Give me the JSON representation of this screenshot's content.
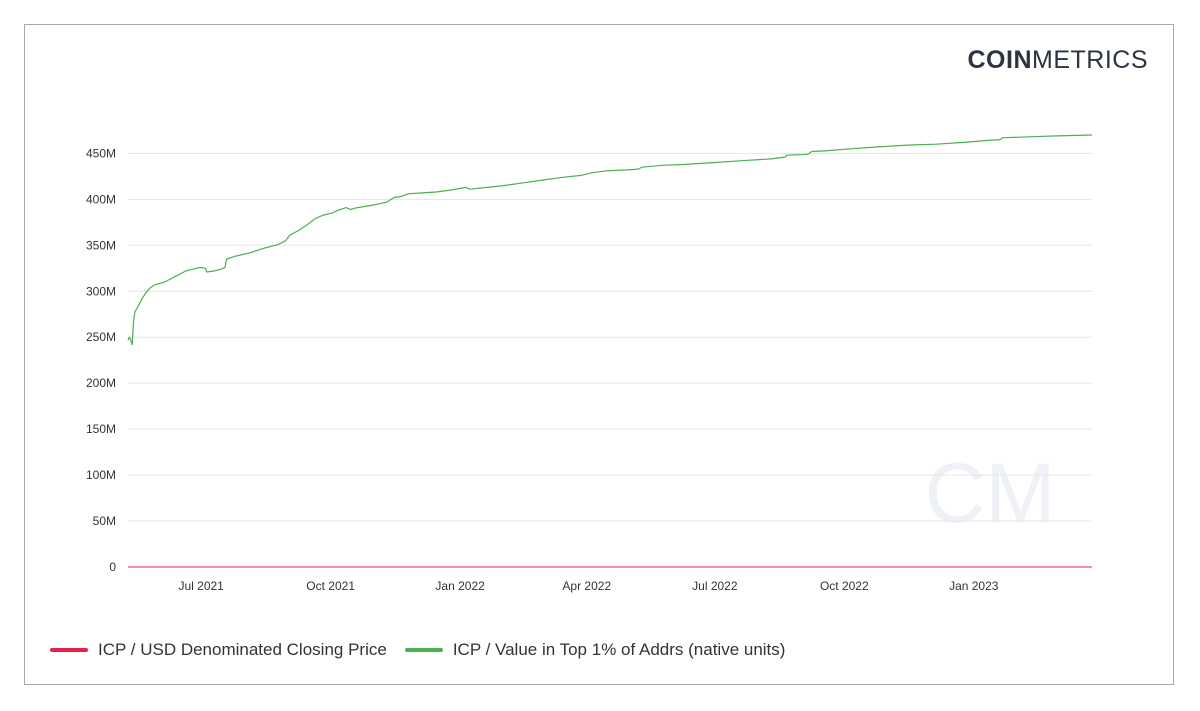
{
  "brand": {
    "logo_bold": "COIN",
    "logo_light": "METRICS",
    "watermark": "CM"
  },
  "colors": {
    "price": "#e8214c",
    "top1pct": "#4caf50",
    "grid": "#e6e6e6",
    "axis_text": "#333333"
  },
  "chart_data": {
    "type": "line",
    "title": "",
    "xlabel": "",
    "ylabel": "",
    "ylim": [
      0,
      470000000
    ],
    "yticks": [
      {
        "value": 0,
        "label": "0"
      },
      {
        "value": 50000000,
        "label": "50M"
      },
      {
        "value": 100000000,
        "label": "100M"
      },
      {
        "value": 150000000,
        "label": "150M"
      },
      {
        "value": 200000000,
        "label": "200M"
      },
      {
        "value": 250000000,
        "label": "250M"
      },
      {
        "value": 300000000,
        "label": "300M"
      },
      {
        "value": 350000000,
        "label": "350M"
      },
      {
        "value": 400000000,
        "label": "400M"
      },
      {
        "value": 450000000,
        "label": "450M"
      }
    ],
    "xlim": [
      "2021-05-10",
      "2023-03-26"
    ],
    "xticks": [
      {
        "date": "2021-07-01",
        "label": "Jul 2021"
      },
      {
        "date": "2021-10-01",
        "label": "Oct 2021"
      },
      {
        "date": "2022-01-01",
        "label": "Jan 2022"
      },
      {
        "date": "2022-04-01",
        "label": "Apr 2022"
      },
      {
        "date": "2022-07-01",
        "label": "Jul 2022"
      },
      {
        "date": "2022-10-01",
        "label": "Oct 2022"
      },
      {
        "date": "2023-01-01",
        "label": "Jan 2023"
      }
    ],
    "grid": true,
    "legend_position": "bottom-left",
    "series": [
      {
        "name": "ICP / USD Denominated Closing Price",
        "color": "#e8214c",
        "points": [
          [
            "2021-05-10",
            40
          ],
          [
            "2022-06-01",
            6
          ],
          [
            "2023-03-26",
            5
          ]
        ]
      },
      {
        "name": "ICP / Value in Top 1% of Addrs (native units)",
        "color": "#4caf50",
        "points": [
          [
            "2021-05-10",
            247000000
          ],
          [
            "2021-05-11",
            250000000
          ],
          [
            "2021-05-12",
            247000000
          ],
          [
            "2021-05-13",
            242000000
          ],
          [
            "2021-05-14",
            268000000
          ],
          [
            "2021-05-15",
            278000000
          ],
          [
            "2021-05-17",
            283000000
          ],
          [
            "2021-05-20",
            292000000
          ],
          [
            "2021-05-23",
            299000000
          ],
          [
            "2021-05-26",
            304000000
          ],
          [
            "2021-05-29",
            307000000
          ],
          [
            "2021-06-05",
            310000000
          ],
          [
            "2021-06-10",
            314000000
          ],
          [
            "2021-06-15",
            318000000
          ],
          [
            "2021-06-20",
            322000000
          ],
          [
            "2021-06-25",
            324000000
          ],
          [
            "2021-06-30",
            326000000
          ],
          [
            "2021-07-04",
            325000000
          ],
          [
            "2021-07-05",
            321000000
          ],
          [
            "2021-07-10",
            322000000
          ],
          [
            "2021-07-15",
            324000000
          ],
          [
            "2021-07-18",
            326000000
          ],
          [
            "2021-07-19",
            335000000
          ],
          [
            "2021-07-25",
            338000000
          ],
          [
            "2021-08-05",
            342000000
          ],
          [
            "2021-08-15",
            347000000
          ],
          [
            "2021-08-25",
            351000000
          ],
          [
            "2021-08-30",
            355000000
          ],
          [
            "2021-09-02",
            361000000
          ],
          [
            "2021-09-08",
            366000000
          ],
          [
            "2021-09-14",
            372000000
          ],
          [
            "2021-09-20",
            379000000
          ],
          [
            "2021-09-26",
            383000000
          ],
          [
            "2021-10-02",
            385000000
          ],
          [
            "2021-10-06",
            388000000
          ],
          [
            "2021-10-12",
            391000000
          ],
          [
            "2021-10-15",
            389000000
          ],
          [
            "2021-10-20",
            391000000
          ],
          [
            "2021-11-01",
            394000000
          ],
          [
            "2021-11-10",
            397000000
          ],
          [
            "2021-11-15",
            402000000
          ],
          [
            "2021-11-20",
            403000000
          ],
          [
            "2021-11-25",
            406000000
          ],
          [
            "2021-12-05",
            407000000
          ],
          [
            "2021-12-15",
            408000000
          ],
          [
            "2021-12-25",
            410000000
          ],
          [
            "2022-01-05",
            413000000
          ],
          [
            "2022-01-08",
            411000000
          ],
          [
            "2022-01-20",
            413000000
          ],
          [
            "2022-02-01",
            415000000
          ],
          [
            "2022-02-15",
            418000000
          ],
          [
            "2022-03-01",
            421000000
          ],
          [
            "2022-03-15",
            424000000
          ],
          [
            "2022-03-28",
            426000000
          ],
          [
            "2022-04-05",
            429000000
          ],
          [
            "2022-04-15",
            431000000
          ],
          [
            "2022-04-30",
            432000000
          ],
          [
            "2022-05-08",
            433000000
          ],
          [
            "2022-05-10",
            435000000
          ],
          [
            "2022-05-25",
            437000000
          ],
          [
            "2022-06-10",
            438000000
          ],
          [
            "2022-06-30",
            440000000
          ],
          [
            "2022-07-20",
            442000000
          ],
          [
            "2022-08-10",
            444000000
          ],
          [
            "2022-08-20",
            446000000
          ],
          [
            "2022-08-21",
            448000000
          ],
          [
            "2022-09-05",
            449000000
          ],
          [
            "2022-09-08",
            452000000
          ],
          [
            "2022-09-20",
            453000000
          ],
          [
            "2022-10-05",
            455000000
          ],
          [
            "2022-10-25",
            457000000
          ],
          [
            "2022-11-15",
            459000000
          ],
          [
            "2022-12-05",
            460000000
          ],
          [
            "2022-12-25",
            462000000
          ],
          [
            "2023-01-10",
            464000000
          ],
          [
            "2023-01-20",
            465000000
          ],
          [
            "2023-01-21",
            467000000
          ],
          [
            "2023-02-10",
            468000000
          ],
          [
            "2023-03-01",
            469000000
          ],
          [
            "2023-03-26",
            470000000
          ]
        ]
      }
    ]
  }
}
